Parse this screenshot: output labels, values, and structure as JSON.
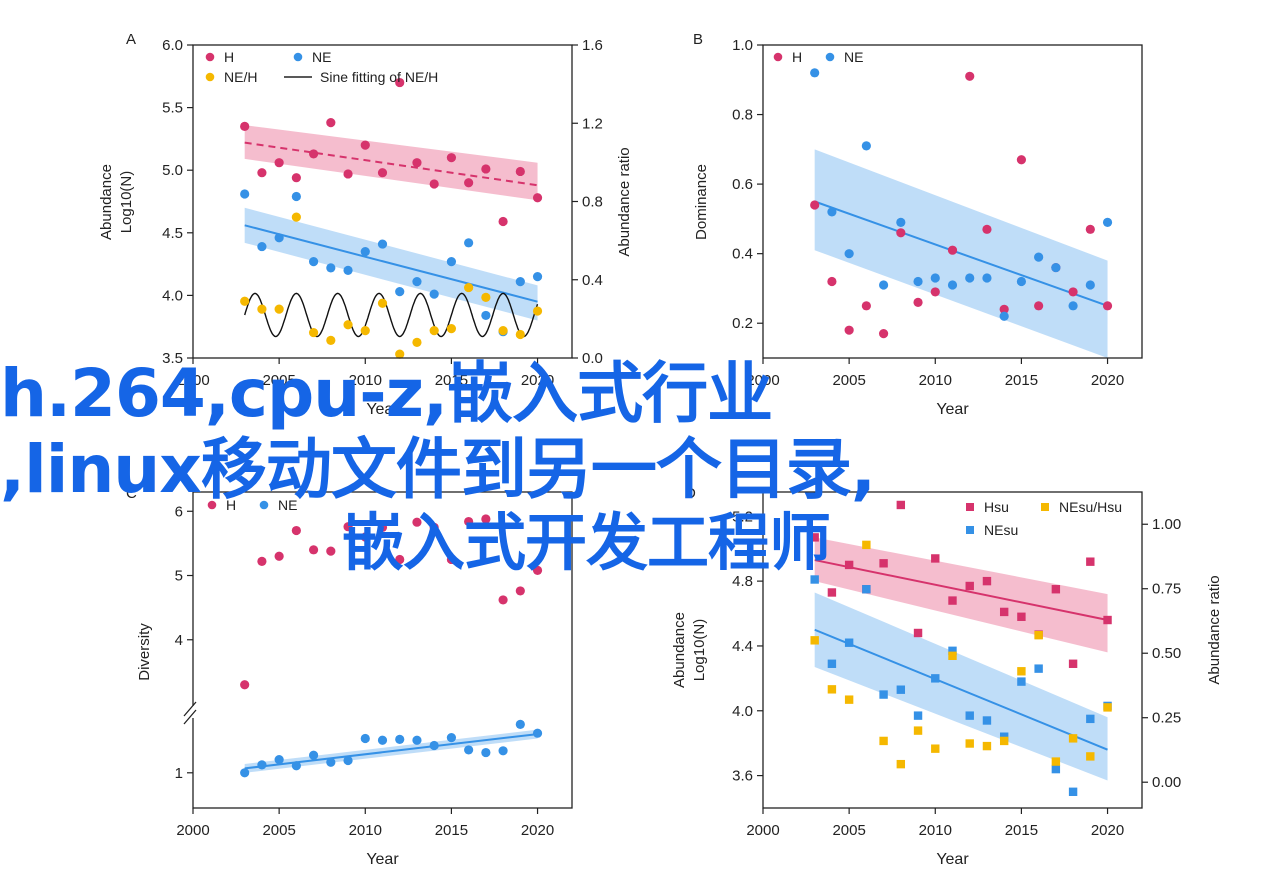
{
  "colors": {
    "h": "#d6336c",
    "ne": "#3591e6",
    "neh": "#f5b800",
    "h_band": "#f1a7be",
    "ne_band": "#a9d1f6"
  },
  "overlay": {
    "line1": "h.264,cpu-z,嵌入式行业",
    "line2": ",linux移动文件到另一个目录,",
    "line3": "嵌入式开发工程师"
  },
  "chart_data": [
    {
      "panel": "A",
      "type": "scatter",
      "xlabel": "Year",
      "ylabel_line1": "Abundance",
      "ylabel_line2": "Log10(N)",
      "y2label": "Abundance ratio",
      "xlim": [
        2000,
        2022
      ],
      "ylim": [
        3.5,
        6.0
      ],
      "y2lim": [
        0,
        1.6
      ],
      "xticks": [
        "2000",
        "2005",
        "2010",
        "2015",
        "2020"
      ],
      "yticks": [
        "3.5",
        "4.0",
        "4.5",
        "5.0",
        "5.5",
        "6.0"
      ],
      "y2ticks": [
        "0.0",
        "0.4",
        "0.8",
        "1.2",
        "1.6"
      ],
      "legend": [
        "H",
        "NE",
        "NE/H",
        "Sine fitting of NE/H"
      ],
      "x": [
        2003,
        2004,
        2005,
        2006,
        2007,
        2008,
        2009,
        2010,
        2011,
        2012,
        2013,
        2014,
        2015,
        2016,
        2017,
        2018,
        2019,
        2020
      ],
      "series": [
        {
          "name": "H",
          "values": [
            5.35,
            4.98,
            5.06,
            4.94,
            5.13,
            5.38,
            4.97,
            5.2,
            4.98,
            5.7,
            5.06,
            4.89,
            5.1,
            4.9,
            5.01,
            4.59,
            4.99,
            4.78
          ],
          "fit": [
            5.22,
            4.88
          ],
          "band": [
            [
              5.36,
              5.09
            ],
            [
              5.06,
              4.76
            ]
          ]
        },
        {
          "name": "NE",
          "values": [
            4.81,
            4.39,
            4.46,
            4.79,
            4.27,
            4.22,
            4.2,
            4.35,
            4.41,
            4.03,
            4.11,
            4.01,
            4.27,
            4.42,
            3.84,
            3.71,
            4.11,
            4.15
          ],
          "fit": [
            4.56,
            3.95
          ],
          "band": [
            [
              4.7,
              4.42
            ],
            [
              4.08,
              3.8
            ]
          ]
        },
        {
          "name": "NE/H",
          "axis": "right",
          "values": [
            0.29,
            0.25,
            0.25,
            0.72,
            0.13,
            0.09,
            0.17,
            0.14,
            0.28,
            0.02,
            0.08,
            0.14,
            0.15,
            0.36,
            0.31,
            0.14,
            0.12,
            0.24
          ]
        }
      ],
      "sine_fit": {
        "mean": 0.22,
        "amplitude": 0.11,
        "period": 2.4,
        "range": [
          2003,
          2020
        ]
      }
    },
    {
      "panel": "B",
      "type": "scatter",
      "xlabel": "Year",
      "ylabel": "Dominance",
      "xlim": [
        2000,
        2022
      ],
      "ylim": [
        0.1,
        1.0
      ],
      "xticks": [
        "2000",
        "2005",
        "2010",
        "2015",
        "2020"
      ],
      "yticks": [
        "0.2",
        "0.4",
        "0.6",
        "0.8",
        "1.0"
      ],
      "legend": [
        "H",
        "NE"
      ],
      "x": [
        2003,
        2004,
        2005,
        2006,
        2007,
        2008,
        2009,
        2010,
        2011,
        2012,
        2013,
        2014,
        2015,
        2016,
        2017,
        2018,
        2019,
        2020
      ],
      "series": [
        {
          "name": "H",
          "values": [
            0.54,
            0.32,
            0.18,
            0.25,
            0.17,
            0.46,
            0.26,
            0.29,
            0.41,
            0.91,
            0.47,
            0.24,
            0.67,
            0.25,
            0.36,
            0.29,
            0.47,
            0.25
          ]
        },
        {
          "name": "NE",
          "values": [
            0.92,
            0.52,
            0.4,
            0.71,
            0.31,
            0.49,
            0.32,
            0.33,
            0.31,
            0.33,
            0.33,
            0.22,
            0.32,
            0.39,
            0.36,
            0.25,
            0.31,
            0.49
          ],
          "fit": [
            0.55,
            0.25
          ],
          "band": [
            [
              0.7,
              0.41
            ],
            [
              0.38,
              0.1
            ]
          ]
        }
      ]
    },
    {
      "panel": "C",
      "type": "scatter",
      "xlabel": "Year",
      "ylabel": "Diversity",
      "xlim": [
        2000,
        2022
      ],
      "broken_axis": {
        "lower": [
          0.6,
          1.6
        ],
        "upper": [
          3.0,
          6.3
        ]
      },
      "xticks": [
        "2000",
        "2005",
        "2010",
        "2015",
        "2020"
      ],
      "yticks": [
        "1",
        "4",
        "5",
        "6"
      ],
      "legend": [
        "H",
        "NE"
      ],
      "x": [
        2003,
        2004,
        2005,
        2006,
        2007,
        2008,
        2009,
        2010,
        2011,
        2012,
        2013,
        2014,
        2015,
        2016,
        2017,
        2018,
        2019,
        2020
      ],
      "series": [
        {
          "name": "H",
          "values": [
            3.3,
            5.22,
            5.3,
            5.7,
            5.4,
            5.38,
            5.76,
            5.6,
            5.75,
            5.25,
            5.83,
            5.75,
            5.25,
            5.84,
            5.88,
            4.62,
            4.76,
            5.08
          ]
        },
        {
          "name": "NE",
          "values": [
            1.0,
            1.09,
            1.15,
            1.08,
            1.2,
            1.12,
            1.14,
            1.39,
            1.37,
            1.38,
            1.37,
            1.31,
            1.4,
            1.26,
            1.23,
            1.25,
            1.55,
            1.45
          ],
          "fit": [
            1.05,
            1.44
          ],
          "band": [
            [
              1.1,
              1.0
            ],
            [
              1.49,
              1.39
            ]
          ]
        }
      ]
    },
    {
      "panel": "D",
      "type": "scatter",
      "xlabel": "Year",
      "ylabel_line1": "Abundance",
      "ylabel_line2": "Log10(N)",
      "y2label": "Abundance ratio",
      "xlim": [
        2000,
        2022
      ],
      "ylim": [
        3.4,
        5.35
      ],
      "y2lim": [
        -0.1,
        1.125
      ],
      "xticks": [
        "2000",
        "2005",
        "2010",
        "2015",
        "2020"
      ],
      "yticks": [
        "3.6",
        "4.0",
        "4.4",
        "4.8",
        "5.2"
      ],
      "y2ticks": [
        "0.00",
        "0.25",
        "0.50",
        "0.75",
        "1.00"
      ],
      "legend": [
        "Hsu",
        "NEsu/Hsu",
        "NEsu"
      ],
      "x": [
        2003,
        2004,
        2005,
        2006,
        2007,
        2008,
        2009,
        2010,
        2011,
        2012,
        2013,
        2014,
        2015,
        2016,
        2017,
        2018,
        2019,
        2020
      ],
      "series": [
        {
          "name": "Hsu",
          "values": [
            5.07,
            4.73,
            4.9,
            4.75,
            4.91,
            5.27,
            4.48,
            4.94,
            4.68,
            4.77,
            4.8,
            4.61,
            4.58,
            4.47,
            4.75,
            4.29,
            4.92,
            4.56
          ],
          "fit": [
            4.93,
            4.56
          ],
          "band": [
            [
              5.07,
              4.8
            ],
            [
              4.72,
              4.36
            ]
          ]
        },
        {
          "name": "NEsu",
          "values": [
            4.81,
            4.29,
            4.42,
            4.75,
            4.1,
            4.13,
            3.97,
            4.2,
            4.37,
            3.97,
            3.94,
            3.84,
            4.18,
            4.26,
            3.64,
            3.5,
            3.95,
            4.03
          ],
          "fit": [
            4.5,
            3.76
          ],
          "band": [
            [
              4.73,
              4.27
            ],
            [
              3.96,
              3.57
            ]
          ]
        },
        {
          "name": "NEsu/Hsu",
          "axis": "right",
          "values": [
            0.55,
            0.36,
            0.32,
            0.92,
            0.16,
            0.07,
            0.2,
            0.13,
            0.49,
            0.15,
            0.14,
            0.16,
            0.43,
            0.57,
            0.08,
            0.17,
            0.1,
            0.29
          ]
        }
      ]
    }
  ]
}
